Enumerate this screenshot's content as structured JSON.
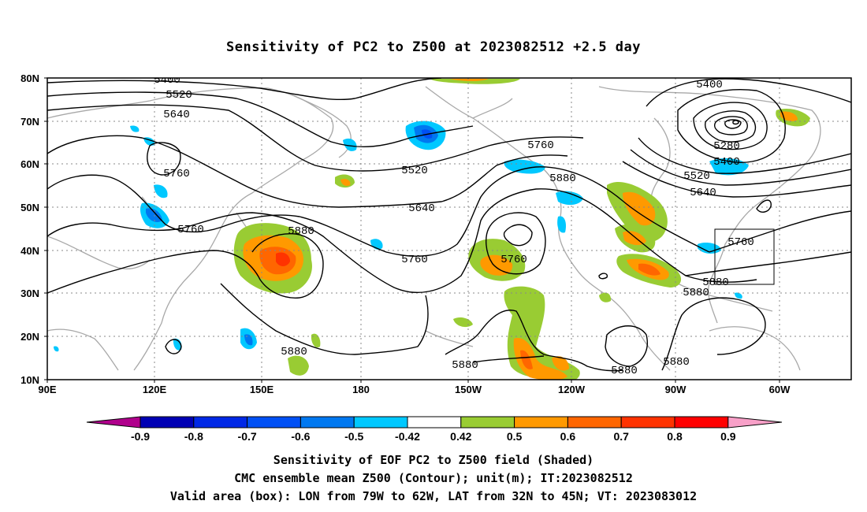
{
  "title": "Sensitivity of PC2 to Z500 at 2023082512 +2.5 day",
  "lat_labels": [
    "80N",
    "70N",
    "60N",
    "50N",
    "40N",
    "30N",
    "20N",
    "10N"
  ],
  "lon_labels": [
    "90E",
    "120E",
    "150E",
    "180",
    "150W",
    "120W",
    "90W",
    "60W"
  ],
  "contour_labels": {
    "c5400_tl": "5400",
    "c5520_tl": "5520",
    "c5640_tl": "5640",
    "c5760_w": "5760",
    "c5760_asia": "5760",
    "c5880_jp": "5880",
    "c5520_mid": "5520",
    "c5640_mid": "5640",
    "c5760_mid": "5760",
    "c5760_low": "5760",
    "c5760_ne": "5760",
    "c5880_ne": "5880",
    "c5400_tr": "5400",
    "c5280": "5280",
    "c5400_r": "5400",
    "c5520_r": "5520",
    "c5640_r": "5640",
    "c5760_r": "5760",
    "c5880_r": "5880",
    "c5880_r2": "5880",
    "c5880_wp": "5880",
    "c5880_ep": "5880",
    "c5880_mx": "5880",
    "c5880_atl": "5880"
  },
  "colorbar": {
    "colors": [
      "#b0008c",
      "#0000b4",
      "#0028e6",
      "#0050f5",
      "#0078f0",
      "#00c8ff",
      "#ffffff",
      "#99cc33",
      "#ff9900",
      "#ff6600",
      "#ff3300",
      "#ff0000",
      "#f8a0c8"
    ],
    "labels": [
      "-0.9",
      "-0.8",
      "-0.7",
      "-0.6",
      "-0.5",
      "-0.42",
      "0.42",
      "0.5",
      "0.6",
      "0.7",
      "0.8",
      "0.9"
    ]
  },
  "caption": {
    "line1": "Sensitivity of EOF PC2 to Z500 field (Shaded)",
    "line2": "CMC ensemble mean Z500 (Contour); unit(m); IT:2023082512",
    "line3": "Valid area (box): LON from 79W to 62W, LAT from 32N to 45N; VT: 2023083012"
  }
}
